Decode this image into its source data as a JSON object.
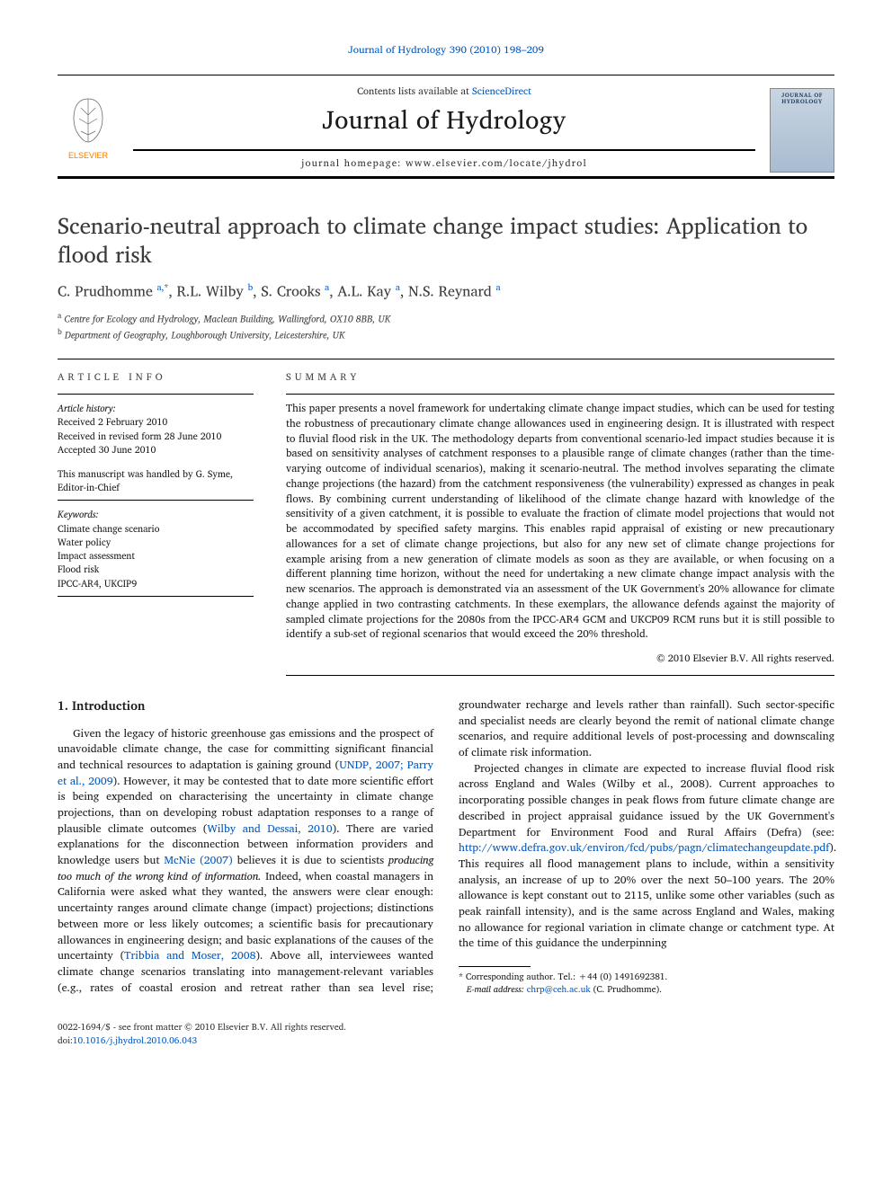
{
  "header": {
    "citation_prefix": "Journal of Hydrology 390 (2010) 198–209",
    "contents_line_pre": "Contents lists available at ",
    "contents_line_link": "ScienceDirect",
    "journal_name": "Journal of Hydrology",
    "homepage_line": "journal homepage: www.elsevier.com/locate/jhydrol",
    "cover_label": "JOURNAL OF HYDROLOGY"
  },
  "article": {
    "title": "Scenario-neutral approach to climate change impact studies: Application to flood risk",
    "authors_html": "C. Prudhomme <sup>a,</sup><sup class='star'>*</sup>, R.L. Wilby <sup>b</sup>, S. Crooks <sup>a</sup>, A.L. Kay <sup>a</sup>, N.S. Reynard <sup>a</sup>",
    "affiliations": [
      {
        "sup": "a",
        "text": "Centre for Ecology and Hydrology, Maclean Building, Wallingford, OX10 8BB, UK"
      },
      {
        "sup": "b",
        "text": "Department of Geography, Loughborough University, Leicestershire, UK"
      }
    ]
  },
  "artinfo": {
    "label": "ARTICLE INFO",
    "history_label": "Article history:",
    "history": [
      "Received 2 February 2010",
      "Received in revised form 28 June 2010",
      "Accepted 30 June 2010"
    ],
    "handled": "This manuscript was handled by G. Syme, Editor-in-Chief",
    "keywords_label": "Keywords:",
    "keywords": [
      "Climate change scenario",
      "Water policy",
      "Impact assessment",
      "Flood risk",
      "IPCC-AR4, UKCIP9"
    ]
  },
  "summary": {
    "label": "SUMMARY",
    "text": "This paper presents a novel framework for undertaking climate change impact studies, which can be used for testing the robustness of precautionary climate change allowances used in engineering design. It is illustrated with respect to fluvial flood risk in the UK. The methodology departs from conventional scenario-led impact studies because it is based on sensitivity analyses of catchment responses to a plausible range of climate changes (rather than the time-varying outcome of individual scenarios), making it scenario-neutral. The method involves separating the climate change projections (the hazard) from the catchment responsiveness (the vulnerability) expressed as changes in peak flows. By combining current understanding of likelihood of the climate change hazard with knowledge of the sensitivity of a given catchment, it is possible to evaluate the fraction of climate model projections that would not be accommodated by specified safety margins. This enables rapid appraisal of existing or new precautionary allowances for a set of climate change projections, but also for any new set of climate change projections for example arising from a new generation of climate models as soon as they are available, or when focusing on a different planning time horizon, without the need for undertaking a new climate change impact analysis with the new scenarios. The approach is demonstrated via an assessment of the UK Government's 20% allowance for climate change applied in two contrasting catchments. In these exemplars, the allowance defends against the majority of sampled climate projections for the 2080s from the IPCC-AR4 GCM and UKCP09 RCM runs but it is still possible to identify a sub-set of regional scenarios that would exceed the 20% threshold.",
    "copyright": "© 2010 Elsevier B.V. All rights reserved."
  },
  "body": {
    "section_title": "1. Introduction",
    "para1_pre": "Given the legacy of historic greenhouse gas emissions and the prospect of unavoidable climate change, the case for committing significant financial and technical resources to adaptation is gaining ground (",
    "para1_link1": "UNDP, 2007; Parry et al., 2009",
    "para1_mid1": "). However, it may be contested that to date more scientific effort is being expended on characterising the uncertainty in climate change projections, than on developing robust adaptation responses to a range of plausible climate outcomes (",
    "para1_link2": "Wilby and Dessai, 2010",
    "para1_mid2": "). There are varied explanations for the disconnection between information providers and knowledge users but ",
    "para1_link3": "McNie (2007)",
    "para1_mid3": " believes it is due to scientists ",
    "para1_italic": "producing too much of the wrong kind of information.",
    "para1_post": " Indeed, when coastal managers in California were asked what they wanted, the answers were clear enough: uncertainty ranges around climate change (impact) projections; distinctions between more or less likely outcomes; a scientific basis for precautionary allowances in engineering design; and basic explanations of the causes of the uncertainty (",
    "para1_link4": "Tribbia and Moser, 2008",
    "para1_end": "). Above all, interviewees wanted climate change scenarios translating into management-relevant variables (e.g., rates of coastal erosion and retreat rather than sea level rise; groundwater recharge and levels rather than rainfall). Such sector-specific and specialist needs are clearly beyond the remit of national climate change scenarios, and require additional levels of post-processing and downscaling of climate risk information.",
    "para2_pre": "Projected changes in climate are expected to increase fluvial flood risk across England and Wales (Wilby et al., 2008). Current approaches to incorporating possible changes in peak flows from future climate change are described in project appraisal guidance issued by the UK Government's Department for Environment Food and Rural Affairs (Defra) (see: ",
    "para2_link": "http://www.defra.gov.uk/environ/fcd/pubs/pagn/climatechangeupdate.pdf",
    "para2_post": "). This requires all flood management plans to include, within a sensitivity analysis, an increase of up to 20% over the next 50–100 years. The 20% allowance is kept constant out to 2115, unlike some other variables (such as peak rainfall intensity), and is the same across England and Wales, making no allowance for regional variation in climate change or catchment type. At the time of this guidance the underpinning"
  },
  "footnote": {
    "corr_label": "* Corresponding author. Tel.: +44 (0) 1491692381.",
    "email_label": "E-mail address:",
    "email": "chrp@ceh.ac.uk",
    "email_who": "(C. Prudhomme)."
  },
  "footer": {
    "left_line1": "0022-1694/$ - see front matter © 2010 Elsevier B.V. All rights reserved.",
    "left_line2_pre": "doi:",
    "left_line2_link": "10.1016/j.jhydrol.2010.06.043"
  },
  "colors": {
    "link": "#0058c0",
    "text": "#1a1a1a",
    "elsevier_orange": "#ef7d00",
    "elsevier_tree": "#6b6b6b"
  }
}
